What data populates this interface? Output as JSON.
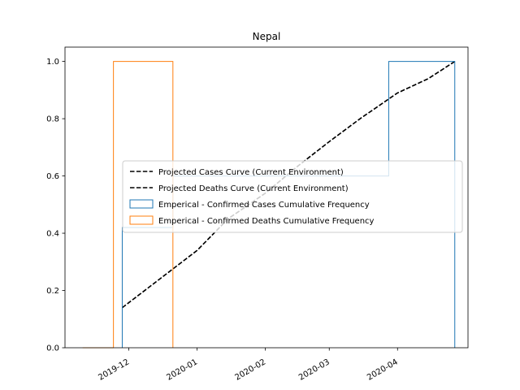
{
  "chart_data": {
    "type": "line",
    "title": "Nepal",
    "xlabel": "",
    "ylabel": "",
    "x_type": "date",
    "xlim": [
      "2019-11-02",
      "2020-05-03"
    ],
    "ylim": [
      0,
      1.05
    ],
    "x_ticks": [
      {
        "date": "2019-12-01",
        "label": "2019-12"
      },
      {
        "date": "2020-01-01",
        "label": "2020-01"
      },
      {
        "date": "2020-02-01",
        "label": "2020-02"
      },
      {
        "date": "2020-03-01",
        "label": "2020-03"
      },
      {
        "date": "2020-04-01",
        "label": "2020-04"
      }
    ],
    "y_ticks": [
      0.0,
      0.2,
      0.4,
      0.6,
      0.8,
      1.0
    ],
    "y_tick_labels": [
      "0.0",
      "0.2",
      "0.4",
      "0.6",
      "0.8",
      "1.0"
    ],
    "grid": false,
    "legend_position": "center-right",
    "series": [
      {
        "name": "Projected Cases Curve (Current Environment)",
        "kind": "line",
        "style": "dashed",
        "color": "#000000",
        "points": [
          [
            "2019-11-28",
            0.14
          ],
          [
            "2019-12-15",
            0.24
          ],
          [
            "2020-01-01",
            0.34
          ],
          [
            "2020-01-15",
            0.45
          ],
          [
            "2020-02-01",
            0.54
          ],
          [
            "2020-02-15",
            0.63
          ],
          [
            "2020-03-01",
            0.72
          ],
          [
            "2020-03-15",
            0.8
          ],
          [
            "2020-04-01",
            0.89
          ],
          [
            "2020-04-15",
            0.94
          ],
          [
            "2020-04-27",
            1.0
          ]
        ]
      },
      {
        "name": "Projected Deaths Curve (Current Environment)",
        "kind": "line",
        "style": "dashed",
        "color": "#000000",
        "points": [
          [
            "2019-11-28",
            0.14
          ],
          [
            "2019-12-15",
            0.24
          ],
          [
            "2020-01-01",
            0.34
          ],
          [
            "2020-01-15",
            0.45
          ],
          [
            "2020-02-01",
            0.54
          ],
          [
            "2020-02-15",
            0.63
          ],
          [
            "2020-03-01",
            0.72
          ],
          [
            "2020-03-15",
            0.8
          ],
          [
            "2020-04-01",
            0.89
          ],
          [
            "2020-04-15",
            0.94
          ],
          [
            "2020-04-27",
            1.0
          ]
        ]
      },
      {
        "name": "Emperical - Confirmed Cases Cumulative Frequency",
        "kind": "step",
        "color": "#1f77b4",
        "points": [
          [
            "2019-11-28",
            0.0
          ],
          [
            "2019-11-28",
            0.42
          ],
          [
            "2019-12-21",
            0.42
          ],
          [
            "2019-12-21",
            0.6
          ],
          [
            "2020-03-28",
            0.6
          ],
          [
            "2020-03-28",
            1.0
          ],
          [
            "2020-04-27",
            1.0
          ],
          [
            "2020-04-27",
            0.0
          ]
        ]
      },
      {
        "name": "Emperical - Confirmed Deaths Cumulative Frequency",
        "kind": "step",
        "color": "#ff7f0e",
        "points": [
          [
            "2019-11-10",
            0.0
          ],
          [
            "2019-11-24",
            0.0
          ],
          [
            "2019-11-24",
            1.0
          ],
          [
            "2019-12-21",
            1.0
          ],
          [
            "2019-12-21",
            0.0
          ]
        ]
      }
    ]
  }
}
